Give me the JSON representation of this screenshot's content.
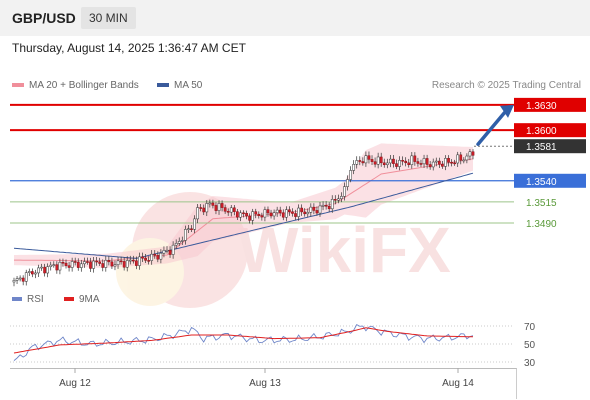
{
  "header": {
    "symbol": "GBP/USD",
    "timeframe": "30 MIN"
  },
  "datetime": "Thursday, August 14, 2025 1:36:47 AM CET",
  "legend": {
    "ma20": {
      "label": "MA 20 + Bollinger Bands",
      "color": "#f08f9b"
    },
    "ma50": {
      "label": "MA 50",
      "color": "#3a5a9b"
    },
    "rsi": {
      "label": "RSI",
      "color": "#6f86c9"
    },
    "ma9": {
      "label": "9MA",
      "color": "#e02020"
    }
  },
  "credit": "Research © 2025 Trading Central",
  "watermark": "WikiFX",
  "chart_data": [
    {
      "type": "line",
      "title": "GBP/USD 30 MIN",
      "ylim": [
        1.342,
        1.365
      ],
      "x_labels": [
        "Aug 12",
        "Aug 13",
        "Aug 14"
      ],
      "levels": [
        {
          "label": "1.3630",
          "value": 1.363,
          "color": "#e00000",
          "kind": "resistance"
        },
        {
          "label": "1.3600",
          "value": 1.36,
          "color": "#e00000",
          "kind": "resistance"
        },
        {
          "label": "1.3581",
          "value": 1.3581,
          "color": "#333333",
          "kind": "last"
        },
        {
          "label": "1.3540",
          "value": 1.354,
          "color": "#3a6fd8",
          "kind": "pivot"
        },
        {
          "label": "1.3515",
          "value": 1.3515,
          "color": "#5a9a3a",
          "kind": "support"
        },
        {
          "label": "1.3490",
          "value": 1.349,
          "color": "#5a9a3a",
          "kind": "support"
        }
      ],
      "price_anchors": [
        [
          0,
          1.342
        ],
        [
          6,
          1.3432
        ],
        [
          14,
          1.344
        ],
        [
          24,
          1.3442
        ],
        [
          34,
          1.3442
        ],
        [
          40,
          1.3445
        ],
        [
          46,
          1.345
        ],
        [
          52,
          1.346
        ],
        [
          56,
          1.3478
        ],
        [
          58,
          1.3486
        ],
        [
          60,
          1.3505
        ],
        [
          64,
          1.3512
        ],
        [
          70,
          1.3505
        ],
        [
          76,
          1.3498
        ],
        [
          84,
          1.3502
        ],
        [
          92,
          1.3502
        ],
        [
          98,
          1.3505
        ],
        [
          104,
          1.3513
        ],
        [
          108,
          1.3528
        ],
        [
          110,
          1.3556
        ],
        [
          114,
          1.3566
        ],
        [
          120,
          1.3562
        ],
        [
          126,
          1.3561
        ],
        [
          130,
          1.3564
        ],
        [
          136,
          1.356
        ],
        [
          142,
          1.3562
        ],
        [
          146,
          1.3566
        ],
        [
          150,
          1.3572
        ]
      ],
      "ma50_anchors": [
        [
          0,
          1.346
        ],
        [
          40,
          1.3448
        ],
        [
          80,
          1.3483
        ],
        [
          110,
          1.3509
        ],
        [
          150,
          1.3549
        ]
      ],
      "ma20_anchors": [
        [
          0,
          1.3446
        ],
        [
          30,
          1.3445
        ],
        [
          50,
          1.3452
        ],
        [
          65,
          1.3495
        ],
        [
          90,
          1.3502
        ],
        [
          105,
          1.3513
        ],
        [
          120,
          1.3548
        ],
        [
          150,
          1.3566
        ]
      ],
      "bb_width_anchors": [
        [
          0,
          0.0006
        ],
        [
          50,
          0.001
        ],
        [
          60,
          0.003
        ],
        [
          90,
          0.0012
        ],
        [
          108,
          0.002
        ],
        [
          115,
          0.004
        ],
        [
          150,
          0.0014
        ]
      ],
      "forecast_arrow": {
        "from": 1.3581,
        "to": 1.363
      }
    },
    {
      "type": "line",
      "title": "RSI",
      "ylim": [
        20,
        80
      ],
      "ticks": [
        70,
        50,
        30
      ],
      "rsi_anchors": [
        [
          0,
          30
        ],
        [
          6,
          46
        ],
        [
          15,
          54
        ],
        [
          25,
          50
        ],
        [
          35,
          52
        ],
        [
          45,
          55
        ],
        [
          52,
          60
        ],
        [
          58,
          67
        ],
        [
          62,
          56
        ],
        [
          70,
          60
        ],
        [
          80,
          54
        ],
        [
          92,
          55
        ],
        [
          100,
          58
        ],
        [
          108,
          63
        ],
        [
          114,
          70
        ],
        [
          120,
          64
        ],
        [
          126,
          60
        ],
        [
          134,
          56
        ],
        [
          142,
          57
        ],
        [
          150,
          60
        ]
      ],
      "ma9_anchors": [
        [
          0,
          40
        ],
        [
          15,
          49
        ],
        [
          30,
          51
        ],
        [
          45,
          54
        ],
        [
          58,
          60
        ],
        [
          70,
          60
        ],
        [
          85,
          56
        ],
        [
          100,
          57
        ],
        [
          110,
          64
        ],
        [
          115,
          68
        ],
        [
          122,
          64
        ],
        [
          135,
          59
        ],
        [
          150,
          58
        ]
      ]
    }
  ]
}
